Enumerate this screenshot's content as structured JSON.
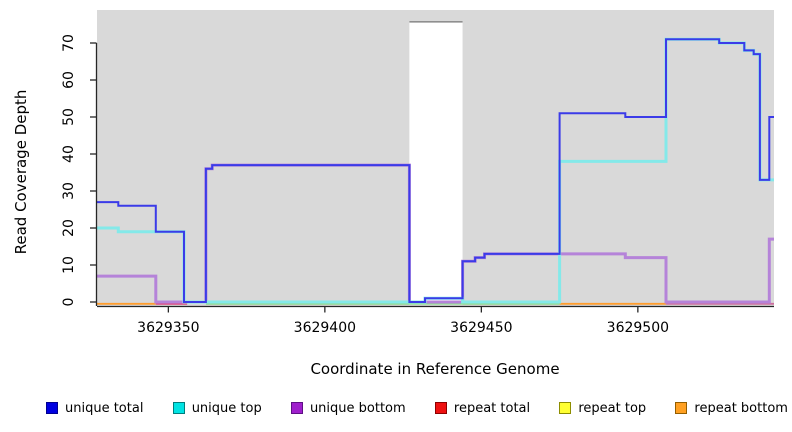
{
  "chart_data": {
    "type": "line",
    "subtype": "step-coverage",
    "title": "",
    "xlabel": "Coordinate in Reference Genome",
    "ylabel": "Read Coverage Depth",
    "xlim": [
      3629327.2,
      3629543.5
    ],
    "ylim": [
      0,
      76
    ],
    "x_ticks": [
      3629350,
      3629400,
      3629450,
      3629500
    ],
    "y_ticks": [
      0,
      10,
      20,
      30,
      40,
      50,
      60,
      70
    ],
    "grid": "off",
    "plot_background": "#d9d9d9",
    "annotation_gap": {
      "x0": 3629427,
      "x1": 3629444,
      "fill": "#ffffff",
      "top_border": "#8f8f8f"
    },
    "series": [
      {
        "name": "unique bottom",
        "color": "#b583d9",
        "width": 3,
        "points": [
          [
            3629327,
            7
          ],
          [
            3629346,
            0
          ],
          [
            3629362,
            36
          ],
          [
            3629364,
            37
          ],
          [
            3629427,
            0
          ],
          [
            3629444,
            11
          ],
          [
            3629448,
            12
          ],
          [
            3629451,
            13
          ],
          [
            3629496,
            12
          ],
          [
            3629509,
            0
          ],
          [
            3629542,
            17
          ]
        ],
        "end": 3629543.5
      },
      {
        "name": "unique top",
        "color": "#84e9e9",
        "width": 3,
        "points": [
          [
            3629327,
            20
          ],
          [
            3629334,
            19
          ],
          [
            3629355,
            0
          ],
          [
            3629432,
            1
          ],
          [
            3629444,
            0
          ],
          [
            3629475,
            38
          ],
          [
            3629509,
            71
          ],
          [
            3629526,
            70
          ],
          [
            3629534,
            68
          ],
          [
            3629537,
            67
          ],
          [
            3629539,
            33
          ]
        ],
        "end": 3629543.5
      },
      {
        "name": "unique total",
        "color": "#3b3be8",
        "width": 2,
        "points": [
          [
            3629327,
            27
          ],
          [
            3629334,
            26
          ],
          [
            3629346,
            19
          ],
          [
            3629355,
            0
          ],
          [
            3629362,
            36
          ],
          [
            3629364,
            37
          ],
          [
            3629427,
            0
          ],
          [
            3629432,
            1
          ],
          [
            3629444,
            11
          ],
          [
            3629448,
            12
          ],
          [
            3629451,
            13
          ],
          [
            3629475,
            51
          ],
          [
            3629496,
            50
          ],
          [
            3629509,
            71
          ],
          [
            3629526,
            70
          ],
          [
            3629534,
            68
          ],
          [
            3629537,
            67
          ],
          [
            3629539,
            33
          ],
          [
            3629542,
            50
          ]
        ],
        "end": 3629543.5
      },
      {
        "name": "repeat total",
        "color": "#e0457f",
        "value": 0
      },
      {
        "name": "repeat top",
        "color": "#ffff00",
        "value": 0
      },
      {
        "name": "repeat bottom",
        "color": "#ff9d2e",
        "value": 0
      }
    ],
    "baseline_segments": [
      {
        "x0": 3629327,
        "x1": 3629346,
        "color": "#ff9d2e"
      },
      {
        "x0": 3629346,
        "x1": 3629356,
        "color": "#e0457f"
      },
      {
        "x0": 3629362,
        "x1": 3629475,
        "color": "#8fd98f"
      },
      {
        "x0": 3629475,
        "x1": 3629509,
        "color": "#ff9d2e"
      },
      {
        "x0": 3629509,
        "x1": 3629543.5,
        "color": "#cf6f9d"
      }
    ],
    "legend": [
      {
        "label": "unique total",
        "fill": "#0000e1",
        "border": "#000090"
      },
      {
        "label": "unique top",
        "fill": "#00e3e3",
        "border": "#007d7d"
      },
      {
        "label": "unique bottom",
        "fill": "#9f1fcc",
        "border": "#5e0f85"
      },
      {
        "label": "repeat total",
        "fill": "#ee1111",
        "border": "#8d0000"
      },
      {
        "label": "repeat top",
        "fill": "#ffff33",
        "border": "#8d8d00"
      },
      {
        "label": "repeat bottom",
        "fill": "#ffa022",
        "border": "#935e00"
      }
    ]
  }
}
